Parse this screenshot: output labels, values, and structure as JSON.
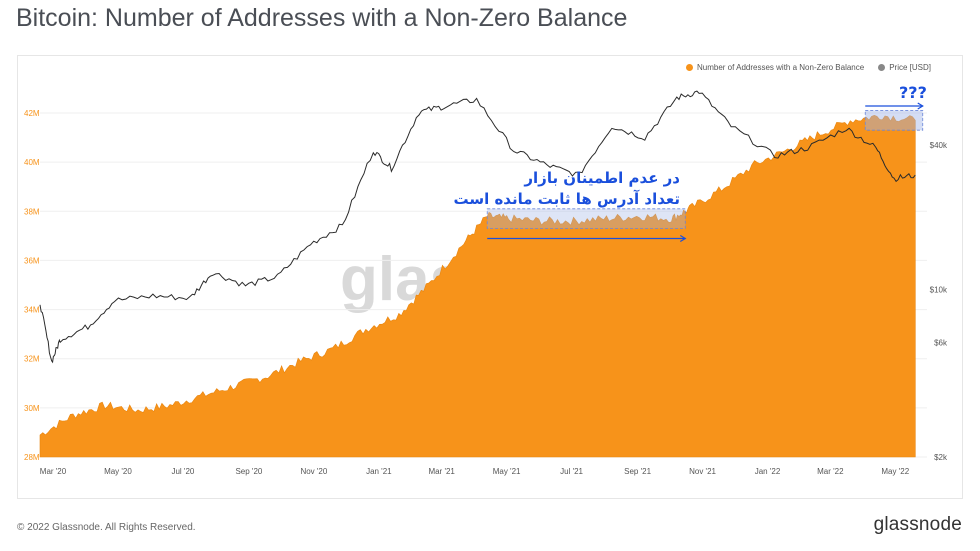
{
  "page": {
    "title": "Bitcoin: Number of Addresses with a Non-Zero Balance",
    "footer": "© 2022 Glassnode. All Rights Reserved.",
    "brand": "glassnode",
    "watermark": "glassnode"
  },
  "annotation": {
    "line1": "در عدم اطمینان بازار",
    "line2": "تعداد آدرس ها ثابت مانده است",
    "question": "???",
    "color": "#1a4fdc"
  },
  "chart_data": {
    "type": "area",
    "title": "Bitcoin: Number of Addresses with a Non-Zero Balance",
    "legend_position": "top-right",
    "series": [
      {
        "name": "Number of Addresses with a Non-Zero Balance",
        "axis": "left",
        "color": "#f7931a",
        "unit": "M",
        "points": [
          [
            "2020-03-01",
            28.9
          ],
          [
            "2020-04-01",
            29.7
          ],
          [
            "2020-05-01",
            30.1
          ],
          [
            "2020-06-01",
            29.9
          ],
          [
            "2020-07-01",
            30.1
          ],
          [
            "2020-08-01",
            30.5
          ],
          [
            "2020-09-01",
            30.9
          ],
          [
            "2020-10-01",
            31.3
          ],
          [
            "2020-11-01",
            31.9
          ],
          [
            "2020-12-01",
            32.4
          ],
          [
            "2021-01-01",
            33.2
          ],
          [
            "2021-02-01",
            33.8
          ],
          [
            "2021-03-01",
            35.0
          ],
          [
            "2021-04-01",
            36.6
          ],
          [
            "2021-04-25",
            37.8
          ],
          [
            "2021-05-15",
            37.7
          ],
          [
            "2021-06-15",
            37.6
          ],
          [
            "2021-07-15",
            37.6
          ],
          [
            "2021-08-15",
            37.7
          ],
          [
            "2021-09-15",
            37.8
          ],
          [
            "2021-10-15",
            37.7
          ],
          [
            "2021-11-01",
            38.1
          ],
          [
            "2021-12-01",
            38.9
          ],
          [
            "2022-01-01",
            39.9
          ],
          [
            "2022-02-01",
            40.5
          ],
          [
            "2022-03-01",
            41.1
          ],
          [
            "2022-04-01",
            41.7
          ],
          [
            "2022-05-01",
            41.9
          ],
          [
            "2022-06-01",
            41.7
          ]
        ]
      },
      {
        "name": "Price [USD]",
        "axis": "right",
        "color": "#333333",
        "scale": "log",
        "points": [
          [
            "2020-03-01",
            8800
          ],
          [
            "2020-03-12",
            5000
          ],
          [
            "2020-03-20",
            6200
          ],
          [
            "2020-04-15",
            7000
          ],
          [
            "2020-05-10",
            9000
          ],
          [
            "2020-06-15",
            9400
          ],
          [
            "2020-07-20",
            9200
          ],
          [
            "2020-08-10",
            11800
          ],
          [
            "2020-09-10",
            10400
          ],
          [
            "2020-10-10",
            11300
          ],
          [
            "2020-11-10",
            15500
          ],
          [
            "2020-12-10",
            18500
          ],
          [
            "2021-01-08",
            38000
          ],
          [
            "2021-01-25",
            32000
          ],
          [
            "2021-02-20",
            55000
          ],
          [
            "2021-03-15",
            58000
          ],
          [
            "2021-04-15",
            62000
          ],
          [
            "2021-05-20",
            38000
          ],
          [
            "2021-06-20",
            33000
          ],
          [
            "2021-07-20",
            30000
          ],
          [
            "2021-08-20",
            48000
          ],
          [
            "2021-09-20",
            43000
          ],
          [
            "2021-10-20",
            63000
          ],
          [
            "2021-11-10",
            67000
          ],
          [
            "2021-12-10",
            48000
          ],
          [
            "2022-01-20",
            36000
          ],
          [
            "2022-02-20",
            39000
          ],
          [
            "2022-03-28",
            47000
          ],
          [
            "2022-04-25",
            39000
          ],
          [
            "2022-05-12",
            29000
          ],
          [
            "2022-06-01",
            30000
          ]
        ]
      }
    ],
    "x_ticks": [
      "Mar '20",
      "May '20",
      "Jul '20",
      "Sep '20",
      "Nov '20",
      "Jan '21",
      "Mar '21",
      "May '21",
      "Jul '21",
      "Sep '21",
      "Nov '21",
      "Jan '22",
      "Mar '22",
      "May '22"
    ],
    "y_left_ticks": [
      "28M",
      "30M",
      "32M",
      "34M",
      "36M",
      "38M",
      "40M",
      "42M"
    ],
    "y_left_range": [
      28,
      42
    ],
    "y_right_ticks": [
      "$2k",
      "$6k",
      "$10k",
      "$40k"
    ],
    "y_right_values": [
      2000,
      6000,
      10000,
      40000
    ],
    "y_right_range": [
      2000,
      80000
    ],
    "grid": "horizontal"
  }
}
